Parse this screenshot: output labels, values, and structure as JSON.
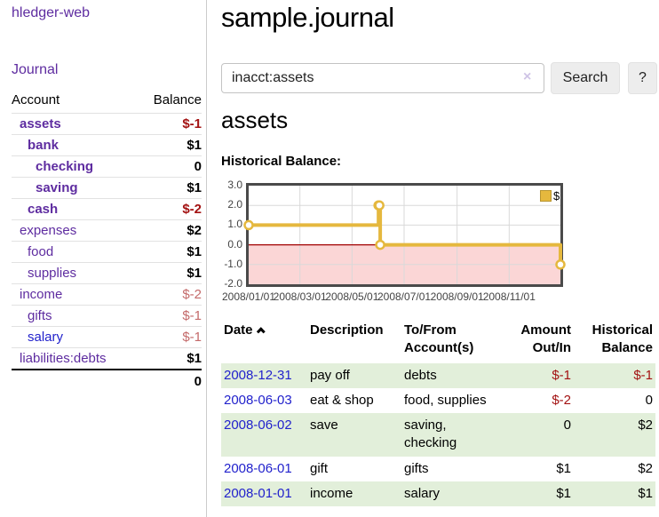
{
  "colors": {
    "link_purple": "#5e2ca0",
    "link_blue": "#2222cc",
    "negative_strong": "#a31212",
    "negative_soft": "#c46a6a",
    "row_green": "#e2efda",
    "series_gold": "#e5b83e",
    "negative_region_pink": "#fbd6d6",
    "zero_line_red": "#a00000"
  },
  "app": {
    "brand": "hledger-web"
  },
  "sidebar": {
    "journal_link": "Journal",
    "headers": {
      "account": "Account",
      "balance": "Balance"
    },
    "accounts": [
      {
        "name": "assets",
        "indent": 0,
        "bold": true,
        "link": "purple",
        "balance": "$-1",
        "balance_style": "neg"
      },
      {
        "name": "bank",
        "indent": 1,
        "bold": true,
        "link": "purple",
        "balance": "$1",
        "balance_style": "pos"
      },
      {
        "name": "checking",
        "indent": 2,
        "bold": true,
        "link": "purple",
        "balance": "0",
        "balance_style": "pos"
      },
      {
        "name": "saving",
        "indent": 2,
        "bold": true,
        "link": "purple",
        "balance": "$1",
        "balance_style": "pos"
      },
      {
        "name": "cash",
        "indent": 1,
        "bold": true,
        "link": "purple",
        "balance": "$-2",
        "balance_style": "neg"
      },
      {
        "name": "expenses",
        "indent": 0,
        "bold": false,
        "link": "purple",
        "balance": "$2",
        "balance_style": "pos"
      },
      {
        "name": "food",
        "indent": 1,
        "bold": false,
        "link": "purple",
        "balance": "$1",
        "balance_style": "pos"
      },
      {
        "name": "supplies",
        "indent": 1,
        "bold": false,
        "link": "purple",
        "balance": "$1",
        "balance_style": "pos"
      },
      {
        "name": "income",
        "indent": 0,
        "bold": false,
        "link": "purple",
        "balance": "$-2",
        "balance_style": "neg-soft"
      },
      {
        "name": "gifts",
        "indent": 1,
        "bold": false,
        "link": "purple",
        "balance": "$-1",
        "balance_style": "neg-soft"
      },
      {
        "name": "salary",
        "indent": 1,
        "bold": false,
        "link": "blue",
        "balance": "$-1",
        "balance_style": "neg-soft"
      },
      {
        "name": "liabilities:debts",
        "indent": 0,
        "bold": false,
        "link": "purple",
        "balance": "$1",
        "balance_style": "pos"
      }
    ],
    "total": "0"
  },
  "main": {
    "title": "sample.journal",
    "search": {
      "value": "inacct:assets",
      "clear_icon": "×",
      "button_label": "Search",
      "help_label": "?"
    },
    "account_heading": "assets",
    "chart_label": "Historical Balance:"
  },
  "chart_data": {
    "type": "line",
    "step": true,
    "title": "Historical Balance",
    "series": [
      {
        "name": "$",
        "color": "#e5b83e",
        "points": [
          [
            "2008-01-01",
            1
          ],
          [
            "2008-06-01",
            2
          ],
          [
            "2008-06-02",
            2
          ],
          [
            "2008-06-03",
            0
          ],
          [
            "2008-12-31",
            -1
          ]
        ]
      }
    ],
    "xlim": [
      "2008-01-01",
      "2008-12-31"
    ],
    "ylim": [
      -2,
      3
    ],
    "y_ticks": [
      3.0,
      2.0,
      1.0,
      0.0,
      -1.0,
      -2.0
    ],
    "x_ticks": [
      {
        "date": "2008-01-01",
        "label": "2008/01/01"
      },
      {
        "date": "2008-03-01",
        "label": "2008/03/01"
      },
      {
        "date": "2008-05-01",
        "label": "2008/05/01"
      },
      {
        "date": "2008-07-01",
        "label": "2008/07/01"
      },
      {
        "date": "2008-09-01",
        "label": "2008/09/01"
      },
      {
        "date": "2008-11-01",
        "label": "2008/11/01"
      }
    ],
    "grid": true,
    "legend_position": "top-right",
    "negative_region": true
  },
  "register": {
    "headers": {
      "date": "Date",
      "description": "Description",
      "accounts": "To/From Account(s)",
      "amount": "Amount Out/In",
      "balance": "Historical Balance"
    },
    "rows": [
      {
        "date": "2008-12-31",
        "description": "pay off",
        "accounts": "debts",
        "amount": "$-1",
        "amount_neg": true,
        "balance": "$-1",
        "balance_neg": true,
        "green": true
      },
      {
        "date": "2008-06-03",
        "description": "eat & shop",
        "accounts": "food, supplies",
        "amount": "$-2",
        "amount_neg": true,
        "balance": "0",
        "balance_neg": false,
        "green": false
      },
      {
        "date": "2008-06-02",
        "description": "save",
        "accounts": "saving,\nchecking",
        "amount": "0",
        "amount_neg": false,
        "balance": "$2",
        "balance_neg": false,
        "green": true
      },
      {
        "date": "2008-06-01",
        "description": "gift",
        "accounts": "gifts",
        "amount": "$1",
        "amount_neg": false,
        "balance": "$2",
        "balance_neg": false,
        "green": false
      },
      {
        "date": "2008-01-01",
        "description": "income",
        "accounts": "salary",
        "amount": "$1",
        "amount_neg": false,
        "balance": "$1",
        "balance_neg": false,
        "green": true
      }
    ]
  }
}
